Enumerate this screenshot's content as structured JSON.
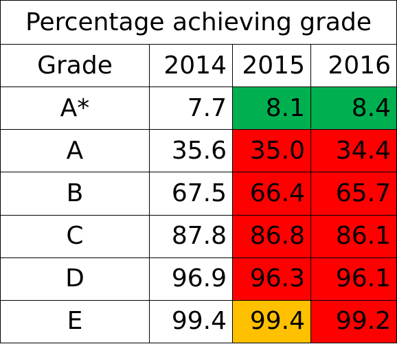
{
  "chart_data": {
    "type": "table",
    "title": "Percentage achieving grade",
    "columns": [
      "Grade",
      "2014",
      "2015",
      "2016"
    ],
    "rows": [
      {
        "grade": "A*",
        "values": [
          "7.7",
          "8.1",
          "8.4"
        ],
        "fills": [
          "#ffffff",
          "#00b050",
          "#00b050"
        ]
      },
      {
        "grade": "A",
        "values": [
          "35.6",
          "35.0",
          "34.4"
        ],
        "fills": [
          "#ffffff",
          "#ff0000",
          "#ff0000"
        ]
      },
      {
        "grade": "B",
        "values": [
          "67.5",
          "66.4",
          "65.7"
        ],
        "fills": [
          "#ffffff",
          "#ff0000",
          "#ff0000"
        ]
      },
      {
        "grade": "C",
        "values": [
          "87.8",
          "86.8",
          "86.1"
        ],
        "fills": [
          "#ffffff",
          "#ff0000",
          "#ff0000"
        ]
      },
      {
        "grade": "D",
        "values": [
          "96.9",
          "96.3",
          "96.1"
        ],
        "fills": [
          "#ffffff",
          "#ff0000",
          "#ff0000"
        ]
      },
      {
        "grade": "E",
        "values": [
          "99.4",
          "99.4",
          "99.2"
        ],
        "fills": [
          "#ffffff",
          "#ffc000",
          "#ff0000"
        ]
      }
    ],
    "colors": {
      "improved": "#00b050",
      "declined": "#ff0000",
      "unchanged": "#ffc000",
      "neutral": "#ffffff"
    }
  }
}
